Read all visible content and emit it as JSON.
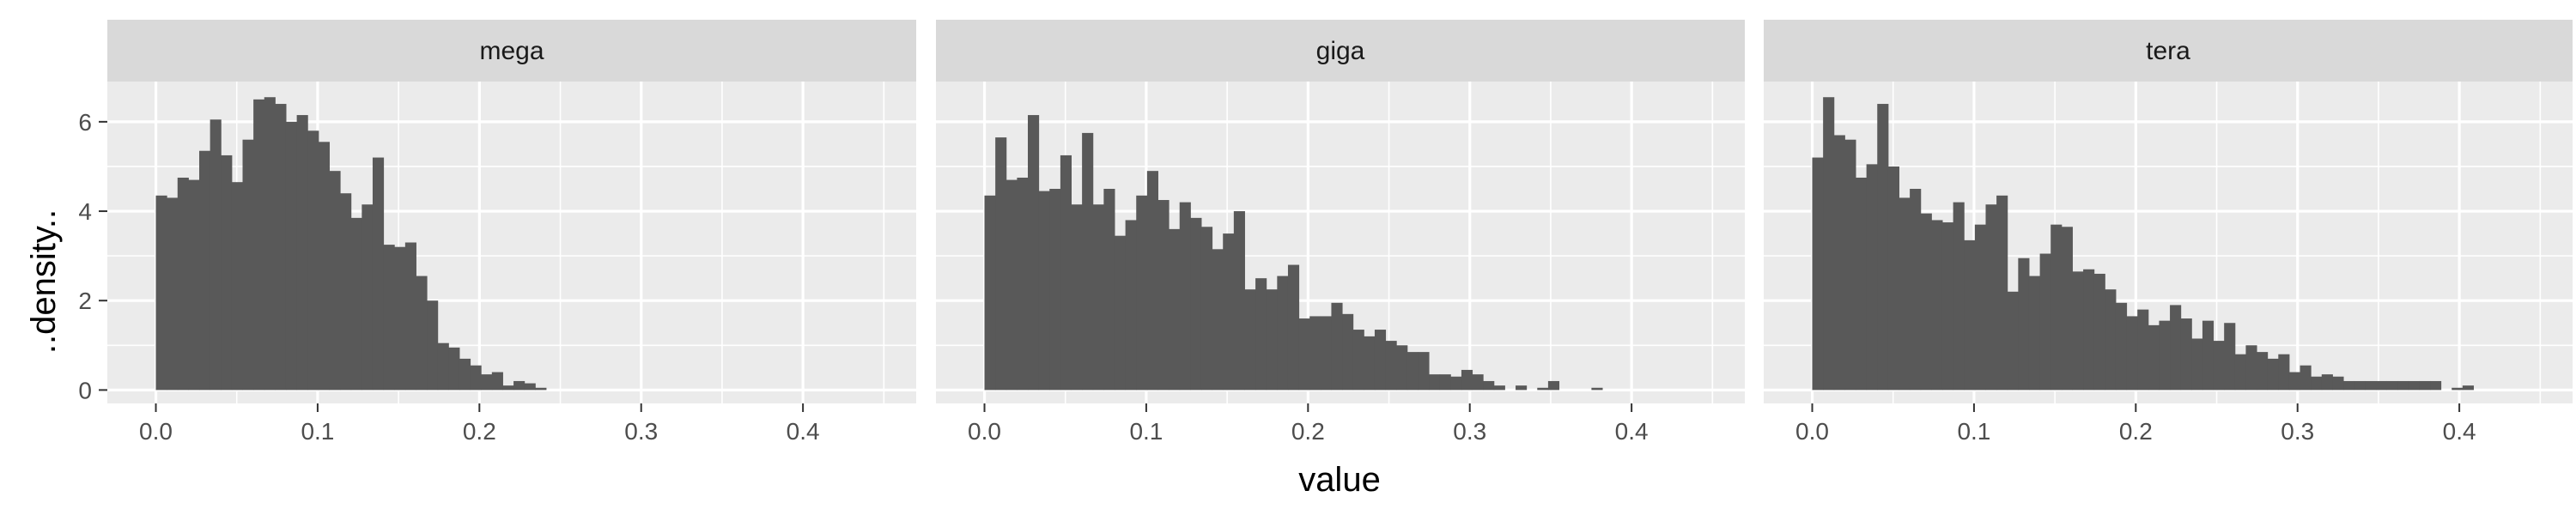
{
  "chart_data": {
    "type": "bar",
    "subtype": "faceted-histogram",
    "xlabel": "value",
    "ylabel": "..density..",
    "xlim": [
      -0.03,
      0.47
    ],
    "ylim": [
      -0.3,
      6.9
    ],
    "x_ticks": [
      0.0,
      0.1,
      0.2,
      0.3,
      0.4
    ],
    "x_tick_labels": [
      "0.0",
      "0.1",
      "0.2",
      "0.3",
      "0.4"
    ],
    "y_ticks": [
      0,
      2,
      4,
      6
    ],
    "y_tick_labels": [
      "0",
      "2",
      "4",
      "6"
    ],
    "grid": true,
    "bin_width": 0.0067,
    "bin_start": 0.0,
    "colors": {
      "bar": "#595959",
      "panel": "#ebebeb",
      "strip": "#d9d9d9",
      "grid": "#ffffff"
    },
    "facets": [
      {
        "name": "mega",
        "values": [
          4.35,
          4.3,
          4.75,
          4.7,
          5.35,
          6.05,
          5.25,
          4.65,
          5.6,
          6.5,
          6.55,
          6.4,
          6.0,
          6.15,
          5.8,
          5.55,
          4.9,
          4.4,
          3.85,
          4.15,
          5.2,
          3.25,
          3.2,
          3.3,
          2.55,
          2.0,
          1.05,
          0.95,
          0.7,
          0.55,
          0.35,
          0.4,
          0.1,
          0.2,
          0.15,
          0.05
        ]
      },
      {
        "name": "giga",
        "values": [
          4.35,
          5.65,
          4.7,
          4.75,
          6.15,
          4.45,
          4.5,
          5.25,
          4.15,
          5.75,
          4.15,
          4.5,
          3.45,
          3.8,
          4.35,
          4.9,
          4.25,
          3.6,
          4.2,
          3.85,
          3.65,
          3.15,
          3.5,
          4.0,
          2.25,
          2.5,
          2.25,
          2.55,
          2.8,
          1.6,
          1.65,
          1.65,
          1.95,
          1.7,
          1.35,
          1.2,
          1.35,
          1.1,
          1.0,
          0.85,
          0.85,
          0.35,
          0.35,
          0.3,
          0.45,
          0.35,
          0.2,
          0.1,
          0.0,
          0.1,
          0.0,
          0.05,
          0.2,
          0.0,
          0.0,
          0.0,
          0.05,
          0.0,
          0.0,
          0.0,
          0.0,
          0.0,
          0.0,
          0.0,
          0.0
        ]
      },
      {
        "name": "tera",
        "values": [
          5.2,
          6.55,
          5.7,
          5.6,
          4.75,
          5.05,
          6.4,
          5.0,
          4.3,
          4.5,
          3.95,
          3.8,
          3.75,
          4.2,
          3.35,
          3.7,
          4.15,
          4.35,
          2.2,
          2.95,
          2.55,
          3.05,
          3.7,
          3.65,
          2.65,
          2.7,
          2.6,
          2.25,
          1.95,
          1.65,
          1.8,
          1.45,
          1.55,
          1.9,
          1.6,
          1.15,
          1.55,
          1.1,
          1.5,
          0.8,
          1.0,
          0.85,
          0.7,
          0.8,
          0.4,
          0.55,
          0.3,
          0.35,
          0.3,
          0.2,
          0.2,
          0.2,
          0.2,
          0.2,
          0.2,
          0.2,
          0.2,
          0.2,
          0.0,
          0.05,
          0.1
        ]
      }
    ]
  }
}
